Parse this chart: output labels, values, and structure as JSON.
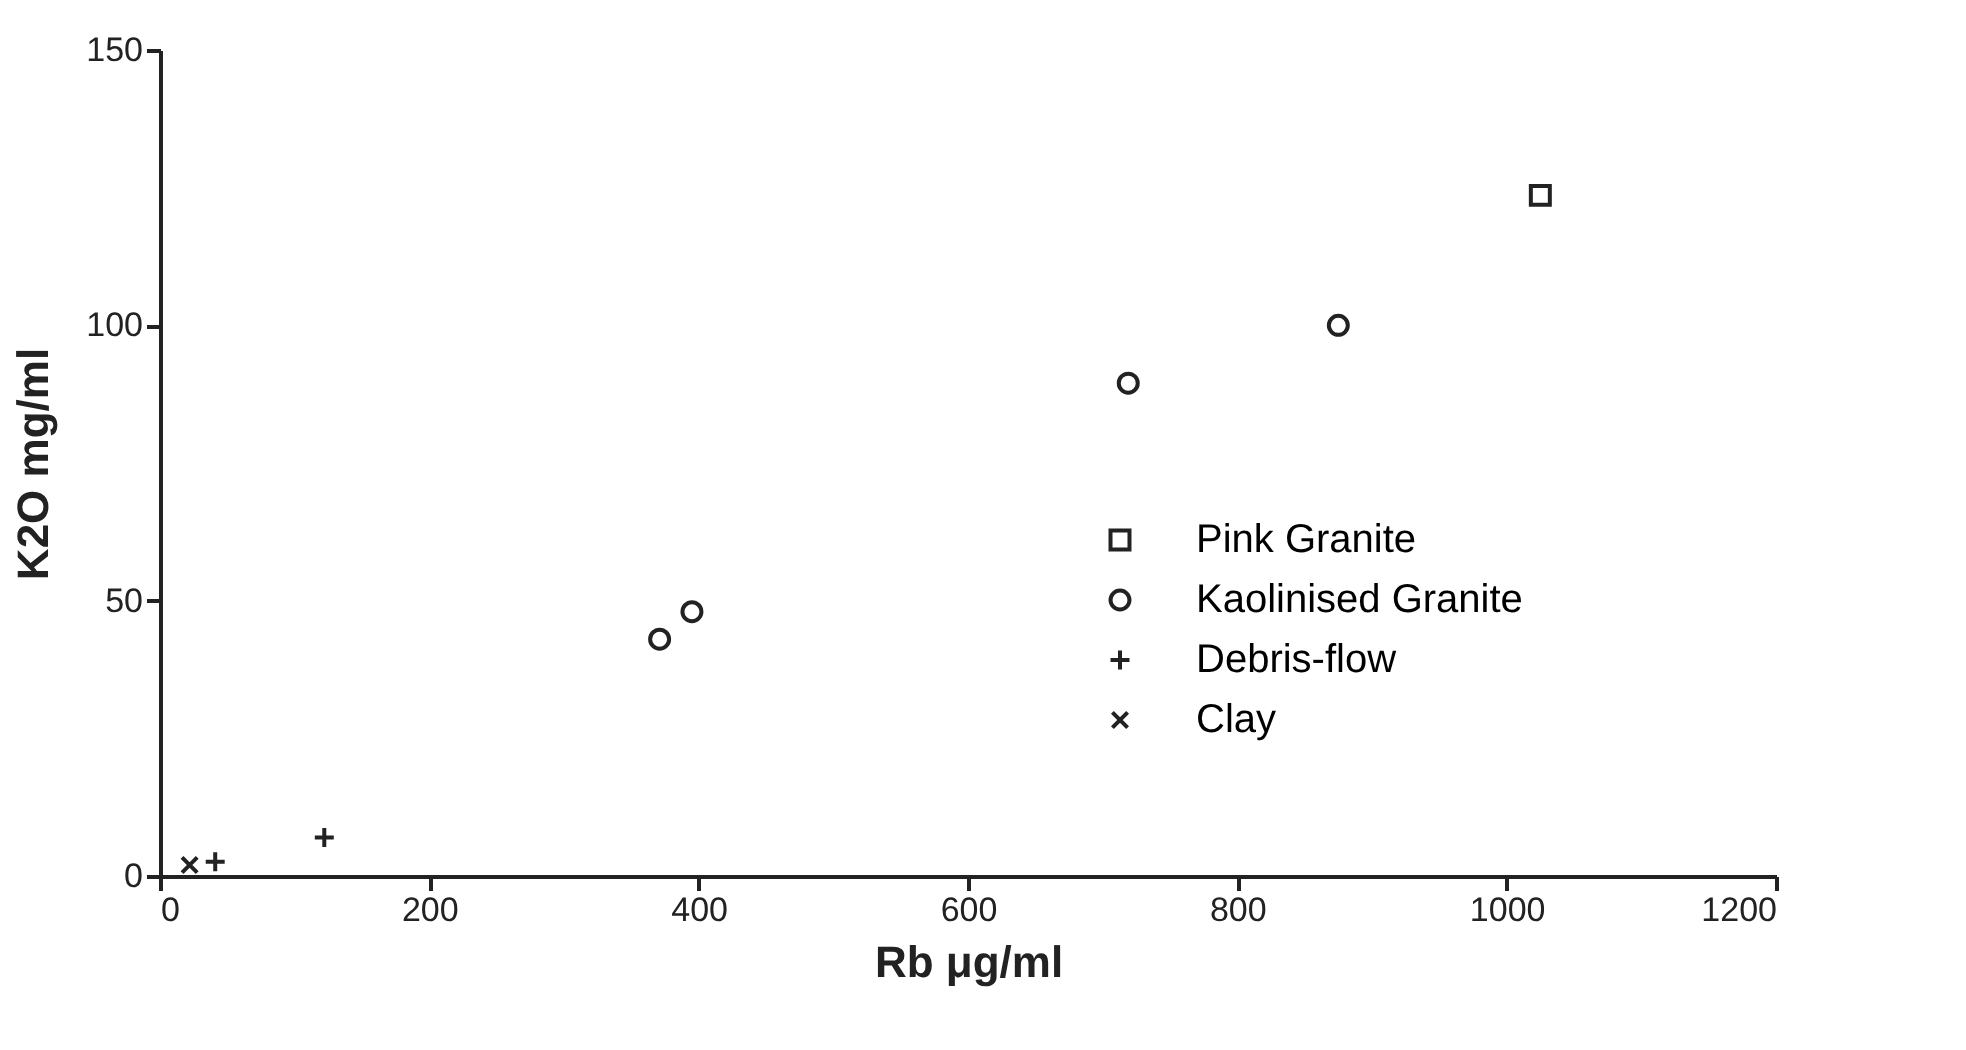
{
  "chart_data": {
    "type": "scatter",
    "xlabel": "Rb μg/ml",
    "ylabel": "K2O  mg/ml",
    "xlim": [
      0,
      1200
    ],
    "xticks": [
      0,
      200,
      400,
      600,
      800,
      1000,
      1200
    ],
    "ylim": [
      0,
      150
    ],
    "yticks": [
      0,
      50,
      100,
      150
    ],
    "grid": false,
    "legend": "bottom right",
    "series": [
      {
        "name": "Pink Granite",
        "color": "#222222",
        "marker": "square",
        "x": [
          1025
        ],
        "values": [
          123.6
        ]
      },
      {
        "name": "Kaolinised Granite",
        "color": "#222222",
        "marker": "circle",
        "x": [
          371,
          395,
          719,
          875
        ],
        "values": [
          43,
          48,
          89.5,
          100
        ]
      },
      {
        "name": "Debris-flow",
        "color": "#222222",
        "marker": "plus",
        "x": [
          41,
          122
        ],
        "values": [
          2.6,
          7
        ]
      },
      {
        "name": "Clay",
        "color": "#222222",
        "marker": "x",
        "x": [
          22
        ],
        "values": [
          2
        ]
      }
    ]
  }
}
